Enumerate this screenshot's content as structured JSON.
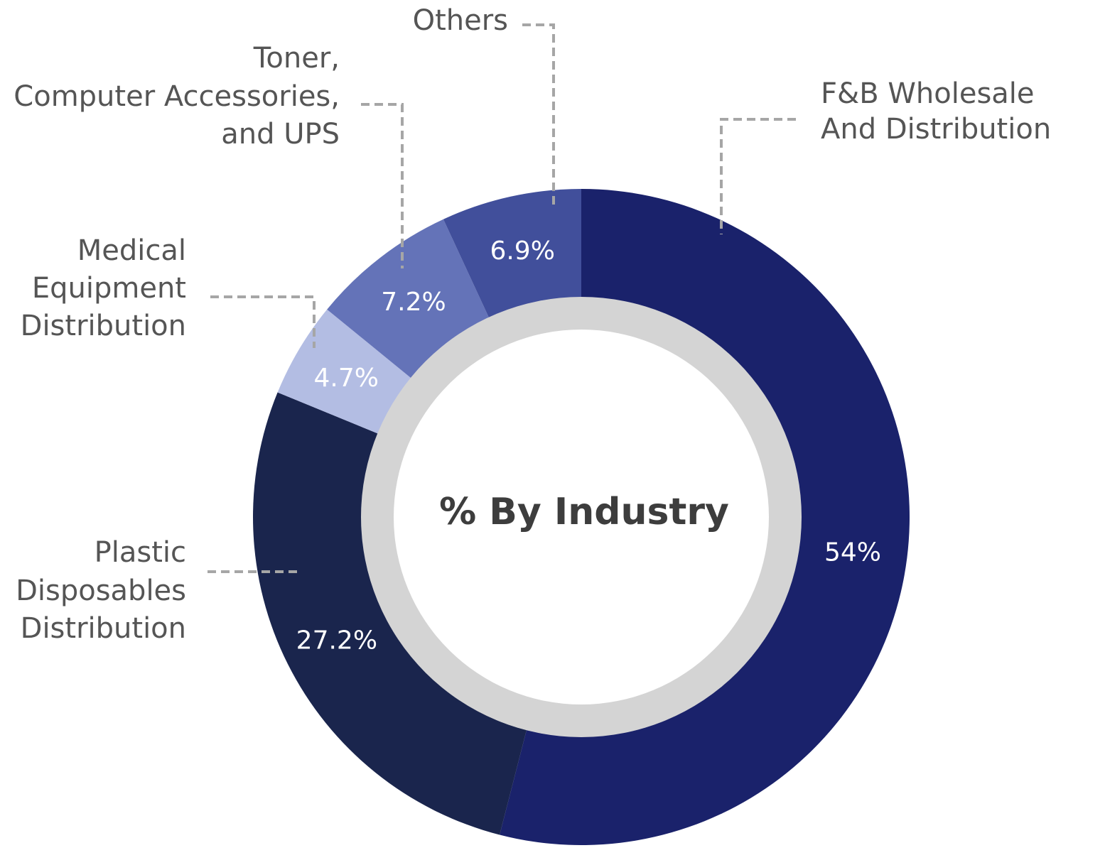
{
  "chart_data": {
    "type": "pie",
    "title": "% By Industry",
    "values_unit": "%",
    "slices": [
      {
        "name": "F&B Wholesale And Distribution",
        "label_lines": [
          "F&B Wholesale",
          "And Distribution"
        ],
        "value": 54,
        "display": "54%",
        "color": "#1a226b"
      },
      {
        "name": "Plastic Disposables Distribution",
        "label_lines": [
          "Plastic",
          "Disposables",
          "Distribution"
        ],
        "value": 27.2,
        "display": "27.2%",
        "color": "#1a254d"
      },
      {
        "name": "Medical Equipment Distribution",
        "label_lines": [
          "Medical",
          "Equipment",
          "Distribution"
        ],
        "value": 4.7,
        "display": "4.7%",
        "color": "#b3bde3"
      },
      {
        "name": "Toner, Computer Accessories, and UPS",
        "label_lines": [
          "Toner,",
          "Computer Accessories,",
          "and UPS"
        ],
        "value": 7.2,
        "display": "7.2%",
        "color": "#6473b8"
      },
      {
        "name": "Others",
        "label_lines": [
          "Others"
        ],
        "value": 6.9,
        "display": "6.9%",
        "color": "#414f9b"
      }
    ],
    "center_ring_color": "#d4d4d4",
    "leader_color": "#a6a6a6"
  }
}
